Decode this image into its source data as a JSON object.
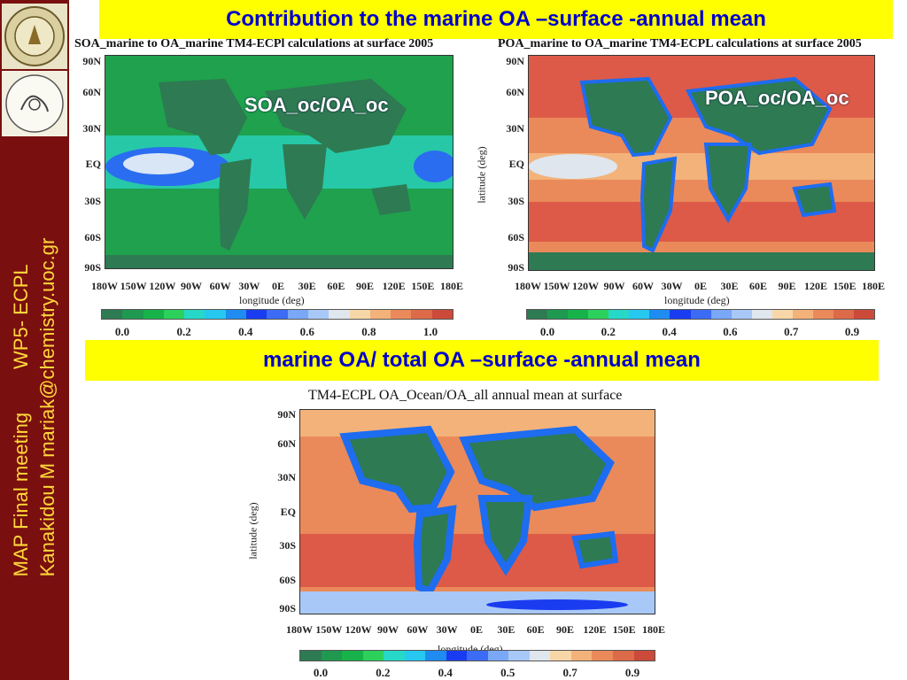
{
  "sidebar": {
    "line1": "MAP Final meeting        WP5- ECPL",
    "line2": "Kanakidou M mariak@chemistry.uoc.gr"
  },
  "banner_top": "Contribution to the marine OA –surface -annual mean",
  "banner_mid": "marine OA/ total OA –surface -annual mean",
  "colorbar_colors": [
    "#2e7a52",
    "#1f9950",
    "#17b34a",
    "#2bd15a",
    "#26d8c8",
    "#26c8f0",
    "#1e8cf0",
    "#1a3cf0",
    "#3c6cf5",
    "#7aa8f7",
    "#a8c8f7",
    "#dfe6ee",
    "#f7d7a8",
    "#f3b27a",
    "#ea8a5a",
    "#dd6a48",
    "#cc4a3a"
  ],
  "panels": [
    {
      "title": "SOA_marine to OA_marine TM4-ECPl calculations at surface 2005",
      "overlay": "SOA_oc/OA_oc",
      "lat_ticks": [
        "90N",
        "60N",
        "30N",
        "EQ",
        "30S",
        "60S",
        "90S"
      ],
      "lon_ticks": [
        "180W",
        "150W",
        "120W",
        "90W",
        "60W",
        "30W",
        "0E",
        "30E",
        "60E",
        "90E",
        "120E",
        "150E",
        "180E"
      ],
      "xlabel": "longitude (deg)",
      "ylabel": "",
      "cbar_ticks": [
        "0.0",
        "0.2",
        "0.4",
        "0.6",
        "0.8",
        "1.0"
      ]
    },
    {
      "title": "POA_marine to OA_marine TM4-ECPL calculations at surface 2005",
      "overlay": "POA_oc/OA_oc",
      "lat_ticks": [
        "90N",
        "60N",
        "30N",
        "EQ",
        "30S",
        "60S",
        "90S"
      ],
      "lon_ticks": [
        "180W",
        "150W",
        "120W",
        "90W",
        "60W",
        "30W",
        "0E",
        "30E",
        "60E",
        "90E",
        "120E",
        "150E",
        "180E"
      ],
      "xlabel": "longitude (deg)",
      "ylabel": "latitude (deg)",
      "cbar_ticks": [
        "0.0",
        "0.2",
        "0.4",
        "0.6",
        "0.7",
        "0.9"
      ]
    },
    {
      "title": "TM4-ECPL OA_Ocean/OA_all annual mean at surface",
      "overlay": "",
      "lat_ticks": [
        "90N",
        "60N",
        "30N",
        "EQ",
        "30S",
        "60S",
        "90S"
      ],
      "lon_ticks": [
        "180W",
        "150W",
        "120W",
        "90W",
        "60W",
        "30W",
        "0E",
        "30E",
        "60E",
        "90E",
        "120E",
        "150E",
        "180E"
      ],
      "xlabel": "longitude (deg)",
      "ylabel": "latitude (deg)",
      "cbar_ticks": [
        "0.0",
        "0.2",
        "0.4",
        "0.5",
        "0.7",
        "0.9"
      ]
    }
  ]
}
